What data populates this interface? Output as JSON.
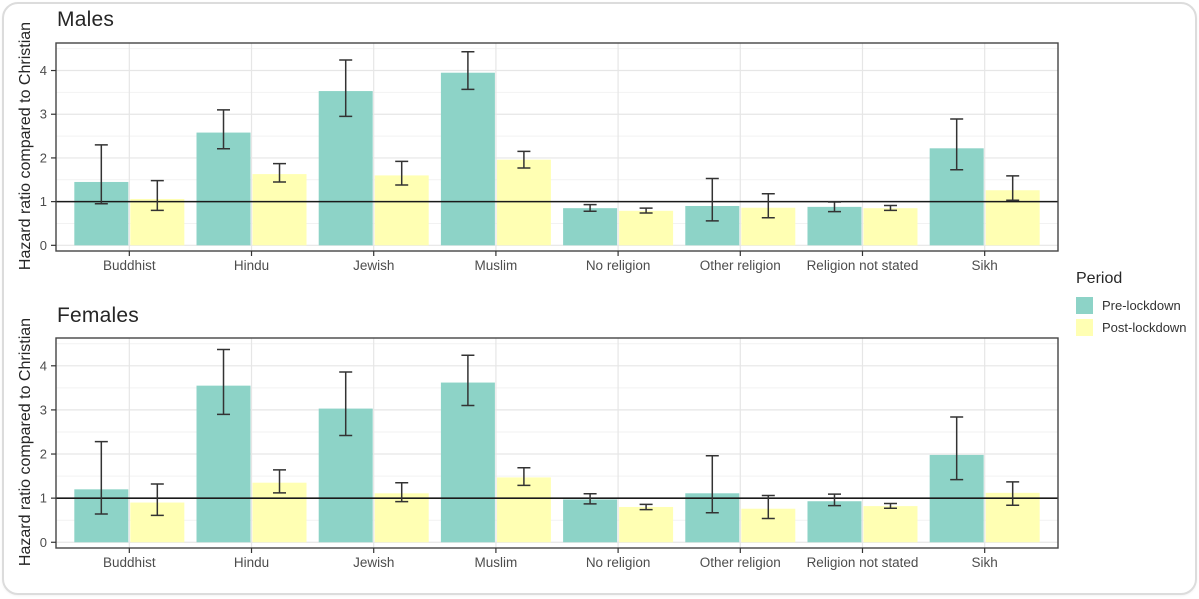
{
  "colors": {
    "pre_lockdown": "#8DD3C7",
    "post_lockdown": "#FFFFB3",
    "panel_border": "#454545",
    "grid_major": "#e6e6e6",
    "grid_minor": "#f2f2f2",
    "error_bar": "#333333",
    "reference_line": "#1a1a1a",
    "axis_text": "#4d4d4d",
    "title_text": "#262626",
    "card_border": "#dcdcdc"
  },
  "chart_data": {
    "type": "bar",
    "title": "",
    "categories": [
      "Buddhist",
      "Hindu",
      "Jewish",
      "Muslim",
      "No religion",
      "Other religion",
      "Religion not stated",
      "Sikh"
    ],
    "ylabel": "Hazard ratio compared to Christian",
    "xlabel": "",
    "yticks": [
      0,
      1,
      2,
      3,
      4
    ],
    "ylim": [
      -0.13,
      4.63
    ],
    "reference_line": 1.0,
    "grid": true,
    "error_bars": true,
    "legend": {
      "title": "Period",
      "position": "right",
      "entries": [
        {
          "label": "Pre-lockdown",
          "color": "#8DD3C7"
        },
        {
          "label": "Post-lockdown",
          "color": "#FFFFB3"
        }
      ]
    },
    "facets": [
      {
        "title": "Males",
        "series": [
          {
            "name": "Pre-lockdown",
            "values": [
              1.45,
              2.58,
              3.53,
              3.95,
              0.85,
              0.9,
              0.88,
              2.22
            ],
            "ci_low": [
              0.95,
              2.21,
              2.95,
              3.57,
              0.78,
              0.56,
              0.77,
              1.73
            ],
            "ci_high": [
              2.3,
              3.1,
              4.24,
              4.43,
              0.93,
              1.53,
              0.99,
              2.89
            ]
          },
          {
            "name": "Post-lockdown",
            "values": [
              1.06,
              1.63,
              1.6,
              1.96,
              0.79,
              0.86,
              0.85,
              1.26
            ],
            "ci_low": [
              0.8,
              1.45,
              1.38,
              1.77,
              0.74,
              0.63,
              0.8,
              1.03
            ],
            "ci_high": [
              1.48,
              1.87,
              1.92,
              2.15,
              0.85,
              1.18,
              0.91,
              1.59
            ]
          }
        ]
      },
      {
        "title": "Females",
        "series": [
          {
            "name": "Pre-lockdown",
            "values": [
              1.2,
              3.55,
              3.03,
              3.62,
              0.97,
              1.11,
              0.93,
              1.98
            ],
            "ci_low": [
              0.64,
              2.9,
              2.42,
              3.1,
              0.87,
              0.67,
              0.83,
              1.42
            ],
            "ci_high": [
              2.28,
              4.37,
              3.86,
              4.24,
              1.1,
              1.96,
              1.09,
              2.84
            ]
          },
          {
            "name": "Post-lockdown",
            "values": [
              0.9,
              1.35,
              1.11,
              1.47,
              0.8,
              0.76,
              0.82,
              1.12
            ],
            "ci_low": [
              0.61,
              1.12,
              0.92,
              1.29,
              0.74,
              0.54,
              0.77,
              0.84
            ],
            "ci_high": [
              1.32,
              1.64,
              1.35,
              1.69,
              0.86,
              1.06,
              0.88,
              1.37
            ]
          }
        ]
      }
    ]
  }
}
